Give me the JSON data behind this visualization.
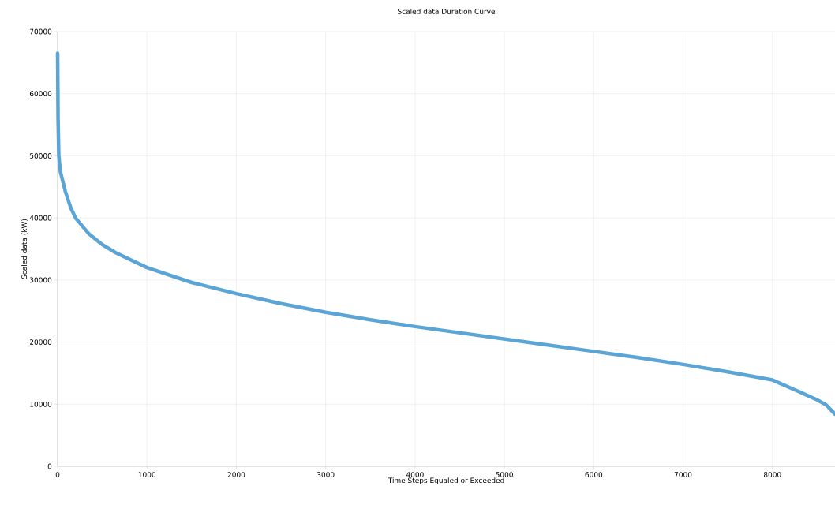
{
  "chart_data": {
    "type": "line",
    "title": "Scaled data Duration Curve",
    "xlabel": "Time Steps Equaled or Exceeded",
    "ylabel": "Scaled data (kW)",
    "x": [
      0,
      5,
      13,
      30,
      87,
      150,
      205,
      352,
      500,
      650,
      1000,
      1500,
      2000,
      2500,
      3000,
      3500,
      4000,
      4500,
      5000,
      5500,
      6000,
      6500,
      7000,
      7500,
      8000,
      8300,
      8500,
      8600,
      8700
    ],
    "series": [
      {
        "color": "#5aa5d6",
        "values": [
          66500,
          56000,
          50100,
          47500,
          44200,
          41500,
          39900,
          37400,
          35700,
          34400,
          32000,
          29600,
          27800,
          26200,
          24800,
          23600,
          22500,
          21500,
          20500,
          19500,
          18500,
          17500,
          16400,
          15200,
          13900,
          12000,
          10700,
          9900,
          8400
        ]
      }
    ],
    "xlim": [
      0,
      8700
    ],
    "ylim": [
      0,
      70000
    ],
    "xticks": [
      0,
      1000,
      2000,
      3000,
      4000,
      5000,
      6000,
      7000,
      8000
    ],
    "yticks": [
      0,
      10000,
      20000,
      30000,
      40000,
      50000,
      60000,
      70000
    ],
    "grid": true,
    "marker": "none",
    "line_style": "solid"
  }
}
